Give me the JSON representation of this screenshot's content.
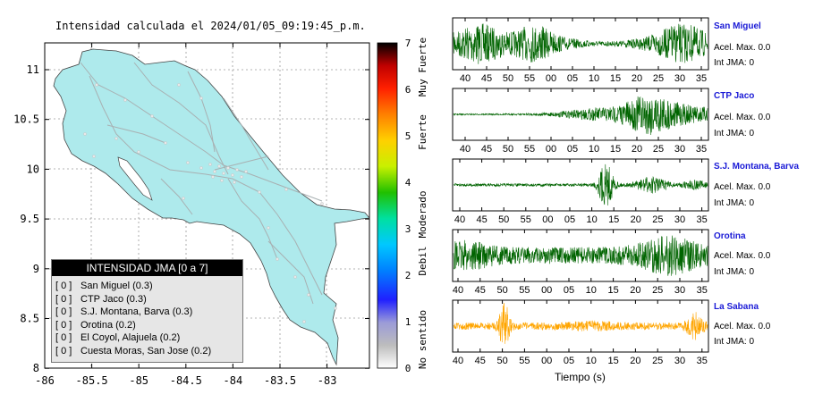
{
  "map": {
    "title": "Intensidad calculada el 2024/01/05_09:19:45_p.m.",
    "x_ticks": [
      "-86",
      "-85.5",
      "-85",
      "-84.5",
      "-84",
      "-83.5",
      "-83"
    ],
    "y_ticks": [
      "11",
      "10.5",
      "10",
      "9.5",
      "9",
      "8.5",
      "8"
    ],
    "land_color": "#aeeaec",
    "colorbar": {
      "values": [
        "0",
        "1",
        "2",
        "3",
        "4",
        "5",
        "6",
        "7"
      ],
      "categories": [
        "No sentido",
        "Debil",
        "Moderado",
        "Fuerte",
        "Muy Fuerte"
      ]
    },
    "legend": {
      "title": "INTENSIDAD JMA [0 a 7]",
      "items": [
        {
          "code": "[ 0 ]",
          "label": "San Miguel (0.3)"
        },
        {
          "code": "[ 0 ]",
          "label": "CTP Jaco (0.3)"
        },
        {
          "code": "[ 0 ]",
          "label": "S.J. Montana, Barva (0.3)"
        },
        {
          "code": "[ 0 ]",
          "label": "Orotina (0.2)"
        },
        {
          "code": "[ 0 ]",
          "label": "El Coyol, Alajuela (0.2)"
        },
        {
          "code": "[ 0 ]",
          "label": "Cuesta Moras, San Jose (0.2)"
        }
      ]
    }
  },
  "chart_data": {
    "type": "line",
    "xlabel": "Tiempo (s)",
    "x_ticks": [
      "40",
      "45",
      "50",
      "55",
      "00",
      "05",
      "10",
      "15",
      "20",
      "25",
      "30",
      "35"
    ],
    "stations": [
      {
        "name": "San Miguel",
        "acel": "Acel. Max. 0.0",
        "int": "Int JMA: 0",
        "color": "#006400"
      },
      {
        "name": "CTP Jaco",
        "acel": "Acel. Max. 0.0",
        "int": "Int JMA: 0",
        "color": "#006400"
      },
      {
        "name": "S.J. Montana, Barva",
        "acel": "Acel. Max. 0.0",
        "int": "Int JMA: 0",
        "color": "#006400"
      },
      {
        "name": "Orotina",
        "acel": "Acel. Max. 0.0",
        "int": "Int JMA: 0",
        "color": "#006400"
      },
      {
        "name": "La Sabana",
        "acel": "Acel. Max. 0.0",
        "int": "Int JMA: 0",
        "color": "#ffa500"
      }
    ]
  }
}
